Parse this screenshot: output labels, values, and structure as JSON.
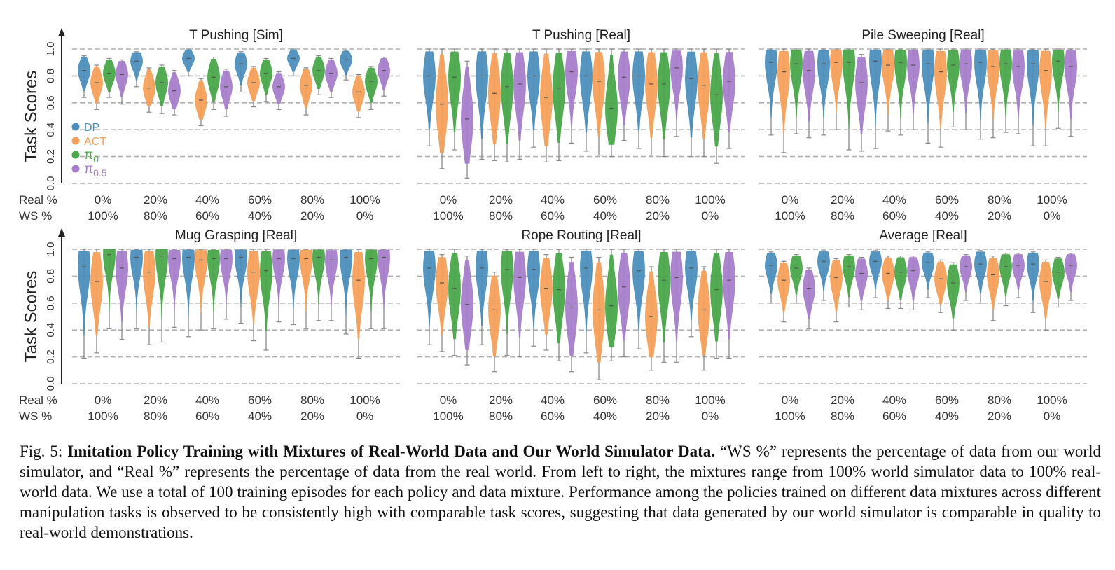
{
  "y_axis_label": "Task Scores",
  "row_labels": {
    "real": "Real %",
    "ws": "WS %"
  },
  "legend": [
    {
      "label": "DP",
      "color": "#4c8fbd"
    },
    {
      "label": "ACT",
      "color": "#f5a05a"
    },
    {
      "label": "π",
      "sub": "0",
      "color": "#4aa84a"
    },
    {
      "label": "π",
      "sub": "0.5",
      "color": "#a77ecb"
    }
  ],
  "colors": [
    "#4c8fbd",
    "#f5a05a",
    "#4aa84a",
    "#a77ecb"
  ],
  "chart_data": [
    {
      "type": "violin",
      "title": "T Pushing [Sim]",
      "ylabel": "Task Scores",
      "ylim": [
        0,
        1
      ],
      "yticks": [
        "0.0",
        "0.2",
        "0.4",
        "0.6",
        "0.8",
        "1.0"
      ],
      "categories_real": [
        "0%",
        "20%",
        "40%",
        "60%",
        "80%",
        "100%"
      ],
      "categories_ws": [
        "100%",
        "80%",
        "60%",
        "40%",
        "20%",
        "0%"
      ],
      "series": [
        {
          "name": "DP",
          "median": [
            0.84,
            0.91,
            0.93,
            0.89,
            0.93,
            0.92
          ],
          "min": [
            0.64,
            0.72,
            0.8,
            0.68,
            0.8,
            0.77
          ],
          "max": [
            0.95,
            0.98,
            1.0,
            0.98,
            1.0,
            0.99
          ]
        },
        {
          "name": "ACT",
          "median": [
            0.75,
            0.71,
            0.62,
            0.75,
            0.73,
            0.68
          ],
          "min": [
            0.55,
            0.53,
            0.43,
            0.57,
            0.51,
            0.49
          ],
          "max": [
            0.88,
            0.86,
            0.78,
            0.87,
            0.86,
            0.81
          ]
        },
        {
          "name": "π0",
          "median": [
            0.82,
            0.75,
            0.79,
            0.82,
            0.84,
            0.76
          ],
          "min": [
            0.64,
            0.52,
            0.55,
            0.61,
            0.66,
            0.55
          ],
          "max": [
            0.93,
            0.88,
            0.94,
            0.93,
            0.95,
            0.87
          ]
        },
        {
          "name": "π0.5",
          "median": [
            0.81,
            0.69,
            0.72,
            0.72,
            0.82,
            0.84
          ],
          "min": [
            0.59,
            0.51,
            0.5,
            0.55,
            0.64,
            0.65
          ],
          "max": [
            0.92,
            0.84,
            0.85,
            0.83,
            0.93,
            0.94
          ]
        }
      ]
    },
    {
      "type": "violin",
      "title": "T Pushing [Real]",
      "ylim": [
        0,
        1
      ],
      "categories_real": [
        "0%",
        "20%",
        "40%",
        "60%",
        "80%",
        "100%"
      ],
      "categories_ws": [
        "100%",
        "80%",
        "60%",
        "40%",
        "20%",
        "0%"
      ],
      "series": [
        {
          "name": "DP",
          "median": [
            0.8,
            0.8,
            0.8,
            0.8,
            0.8,
            0.78
          ],
          "min": [
            0.28,
            0.18,
            0.27,
            0.24,
            0.26,
            0.2
          ],
          "max": [
            1.0,
            1.0,
            1.0,
            1.0,
            1.0,
            1.0
          ]
        },
        {
          "name": "ACT",
          "median": [
            0.59,
            0.67,
            0.64,
            0.76,
            0.74,
            0.73
          ],
          "min": [
            0.11,
            0.17,
            0.16,
            0.21,
            0.21,
            0.2
          ],
          "max": [
            1.0,
            1.0,
            1.0,
            1.0,
            1.0,
            1.0
          ]
        },
        {
          "name": "π0",
          "median": [
            0.79,
            0.72,
            0.71,
            0.56,
            0.74,
            0.66
          ],
          "min": [
            0.25,
            0.16,
            0.17,
            0.2,
            0.2,
            0.15
          ],
          "max": [
            1.0,
            1.0,
            1.0,
            1.0,
            1.0,
            1.0
          ]
        },
        {
          "name": "π0.5",
          "median": [
            0.48,
            0.74,
            0.83,
            0.79,
            0.86,
            0.76
          ],
          "min": [
            0.04,
            0.18,
            0.3,
            0.32,
            0.35,
            0.26
          ],
          "max": [
            0.91,
            1.0,
            1.0,
            1.0,
            1.0,
            1.0
          ]
        }
      ]
    },
    {
      "type": "violin",
      "title": "Pile Sweeping [Real]",
      "ylim": [
        0,
        1
      ],
      "categories_real": [
        "0%",
        "20%",
        "40%",
        "60%",
        "80%",
        "100%"
      ],
      "categories_ws": [
        "100%",
        "80%",
        "60%",
        "40%",
        "20%",
        "0%"
      ],
      "series": [
        {
          "name": "DP",
          "median": [
            0.9,
            0.89,
            0.91,
            0.89,
            0.9,
            0.89
          ],
          "min": [
            0.36,
            0.36,
            0.26,
            0.3,
            0.33,
            0.28
          ],
          "max": [
            1.0,
            1.0,
            1.0,
            1.0,
            1.0,
            1.0
          ]
        },
        {
          "name": "ACT",
          "median": [
            0.83,
            0.9,
            0.88,
            0.83,
            0.87,
            0.84
          ],
          "min": [
            0.23,
            0.4,
            0.39,
            0.27,
            0.34,
            0.28
          ],
          "max": [
            1.0,
            1.0,
            1.0,
            1.0,
            1.0,
            1.0
          ]
        },
        {
          "name": "π0",
          "median": [
            0.89,
            0.9,
            0.9,
            0.88,
            0.89,
            0.91
          ],
          "min": [
            0.37,
            0.25,
            0.36,
            0.42,
            0.38,
            0.41
          ],
          "max": [
            1.0,
            1.0,
            1.0,
            1.0,
            1.0,
            1.0
          ]
        },
        {
          "name": "π0.5",
          "median": [
            0.84,
            0.75,
            0.88,
            0.89,
            0.87,
            0.87
          ],
          "min": [
            0.34,
            0.24,
            0.4,
            0.4,
            0.37,
            0.35
          ],
          "max": [
            1.0,
            0.96,
            1.0,
            1.0,
            1.0,
            1.0
          ]
        }
      ]
    },
    {
      "type": "violin",
      "title": "Mug Grasping [Real]",
      "ylabel": "Task Scores",
      "ylim": [
        0,
        1
      ],
      "yticks": [
        "0.0",
        "0.2",
        "0.4",
        "0.6",
        "0.8",
        "1.0"
      ],
      "categories_real": [
        "0%",
        "20%",
        "40%",
        "60%",
        "80%",
        "100%"
      ],
      "categories_ws": [
        "100%",
        "80%",
        "60%",
        "40%",
        "20%",
        "0%"
      ],
      "series": [
        {
          "name": "DP",
          "median": [
            0.87,
            0.94,
            0.94,
            0.94,
            0.93,
            0.94
          ],
          "min": [
            0.19,
            0.41,
            0.35,
            0.45,
            0.44,
            0.37
          ],
          "max": [
            1.0,
            1.0,
            1.0,
            1.0,
            1.0,
            1.0
          ]
        },
        {
          "name": "ACT",
          "median": [
            0.76,
            0.83,
            0.92,
            0.83,
            0.93,
            0.77
          ],
          "min": [
            0.23,
            0.29,
            0.4,
            0.32,
            0.41,
            0.19
          ],
          "max": [
            1.0,
            1.0,
            1.0,
            1.0,
            1.0,
            1.0
          ]
        },
        {
          "name": "π0",
          "median": [
            0.96,
            0.95,
            0.93,
            0.84,
            0.94,
            0.93
          ],
          "min": [
            0.41,
            0.31,
            0.41,
            0.25,
            0.47,
            0.41
          ],
          "max": [
            1.0,
            1.0,
            1.0,
            1.0,
            1.0,
            1.0
          ]
        },
        {
          "name": "π0.5",
          "median": [
            0.86,
            0.93,
            0.93,
            0.93,
            0.92,
            0.94
          ],
          "min": [
            0.33,
            0.42,
            0.48,
            0.46,
            0.47,
            0.41
          ],
          "max": [
            1.0,
            1.0,
            1.0,
            1.0,
            1.0,
            1.0
          ]
        }
      ]
    },
    {
      "type": "violin",
      "title": "Rope Routing [Real]",
      "ylim": [
        0,
        1
      ],
      "categories_real": [
        "0%",
        "20%",
        "40%",
        "60%",
        "80%",
        "100%"
      ],
      "categories_ws": [
        "100%",
        "80%",
        "60%",
        "40%",
        "20%",
        "0%"
      ],
      "series": [
        {
          "name": "DP",
          "median": [
            0.86,
            0.86,
            0.85,
            0.86,
            0.84,
            0.86
          ],
          "min": [
            0.29,
            0.29,
            0.28,
            0.23,
            0.26,
            0.35
          ],
          "max": [
            1.0,
            1.0,
            1.0,
            1.0,
            1.0,
            1.0
          ]
        },
        {
          "name": "ACT",
          "median": [
            0.75,
            0.55,
            0.71,
            0.55,
            0.5,
            0.55
          ],
          "min": [
            0.24,
            0.09,
            0.25,
            0.03,
            0.1,
            0.1
          ],
          "max": [
            0.96,
            0.83,
            0.96,
            0.94,
            0.87,
            0.87
          ]
        },
        {
          "name": "π0",
          "median": [
            0.71,
            0.85,
            0.7,
            0.58,
            0.77,
            0.7
          ],
          "min": [
            0.21,
            0.21,
            0.17,
            0.17,
            0.16,
            0.19
          ],
          "max": [
            1.0,
            1.0,
            1.0,
            1.0,
            1.0,
            1.0
          ]
        },
        {
          "name": "π0.5",
          "median": [
            0.59,
            0.79,
            0.57,
            0.72,
            0.79,
            0.77
          ],
          "min": [
            0.14,
            0.2,
            0.09,
            0.2,
            0.16,
            0.19
          ],
          "max": [
            0.95,
            1.0,
            0.94,
            1.0,
            1.0,
            1.0
          ]
        }
      ]
    },
    {
      "type": "violin",
      "title": "Average [Real]",
      "ylim": [
        0,
        1
      ],
      "categories_real": [
        "0%",
        "20%",
        "40%",
        "60%",
        "80%",
        "100%"
      ],
      "categories_ws": [
        "100%",
        "80%",
        "60%",
        "40%",
        "20%",
        "0%"
      ],
      "series": [
        {
          "name": "DP",
          "median": [
            0.88,
            0.91,
            0.91,
            0.9,
            0.89,
            0.89
          ],
          "min": [
            0.6,
            0.62,
            0.64,
            0.64,
            0.6,
            0.53
          ],
          "max": [
            0.98,
            0.99,
            0.99,
            0.98,
            0.99,
            0.98
          ]
        },
        {
          "name": "ACT",
          "median": [
            0.77,
            0.79,
            0.82,
            0.78,
            0.81,
            0.76
          ],
          "min": [
            0.46,
            0.46,
            0.56,
            0.53,
            0.47,
            0.4
          ],
          "max": [
            0.91,
            0.93,
            0.95,
            0.92,
            0.95,
            0.92
          ]
        },
        {
          "name": "π0",
          "median": [
            0.86,
            0.87,
            0.83,
            0.75,
            0.87,
            0.83
          ],
          "min": [
            0.6,
            0.57,
            0.56,
            0.4,
            0.58,
            0.57
          ],
          "max": [
            0.96,
            0.96,
            0.95,
            0.9,
            0.97,
            0.94
          ]
        },
        {
          "name": "π0.5",
          "median": [
            0.71,
            0.82,
            0.84,
            0.87,
            0.88,
            0.88
          ],
          "min": [
            0.41,
            0.55,
            0.55,
            0.62,
            0.64,
            0.62
          ],
          "max": [
            0.86,
            0.94,
            0.95,
            0.96,
            0.97,
            0.97
          ]
        }
      ]
    }
  ],
  "caption": {
    "prefix": "Fig. 5: ",
    "bold": "Imitation Policy Training with Mixtures of Real-World Data and Our World Simulator Data.",
    "rest": " “WS %” represents the percentage of data from our world simulator, and “Real %” represents the percentage of data from the real world. From left to right, the mixtures range from 100% world simulator data to 100% real-world data. We use a total of 100 training episodes for each policy and data mixture. Performance among the policies trained on different data mixtures across different manipulation tasks is observed to be consistently high with comparable task scores, suggesting that data generated by our world simulator is comparable in quality to real-world demonstrations."
  }
}
